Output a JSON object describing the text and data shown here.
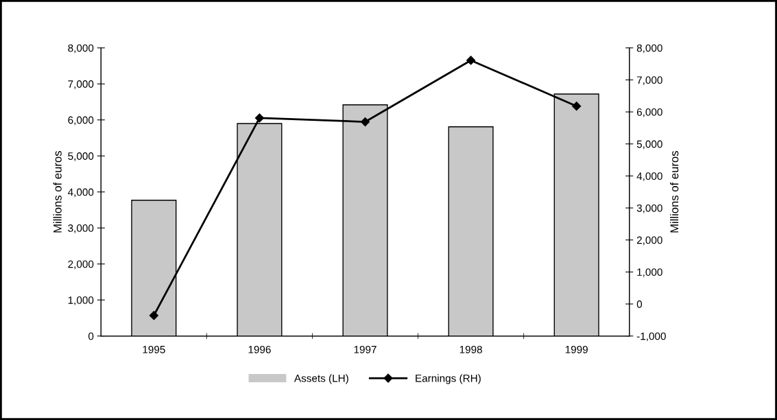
{
  "chart_data": {
    "type": "bar",
    "categories": [
      "1995",
      "1996",
      "1997",
      "1998",
      "1999"
    ],
    "ylabel": "Millions of euros",
    "y2label": "Millions of euros",
    "ylim": [
      0,
      8000
    ],
    "yticks": [
      {
        "value": 0,
        "label": "0"
      },
      {
        "value": 1000,
        "label": "1,000"
      },
      {
        "value": 2000,
        "label": "2,000"
      },
      {
        "value": 3000,
        "label": "3,000"
      },
      {
        "value": 4000,
        "label": "4,000"
      },
      {
        "value": 5000,
        "label": "5,000"
      },
      {
        "value": 6000,
        "label": "6,000"
      },
      {
        "value": 7000,
        "label": "7,000"
      },
      {
        "value": 8000,
        "label": "8,000"
      }
    ],
    "y2lim": [
      -1000,
      8000
    ],
    "y2ticks": [
      {
        "value": -1000,
        "label": "-1,000"
      },
      {
        "value": 0,
        "label": "0"
      },
      {
        "value": 1000,
        "label": "1,000"
      },
      {
        "value": 2000,
        "label": "2,000"
      },
      {
        "value": 3000,
        "label": "3,000"
      },
      {
        "value": 4000,
        "label": "4,000"
      },
      {
        "value": 5000,
        "label": "5,000"
      },
      {
        "value": 6000,
        "label": "6,000"
      },
      {
        "value": 7000,
        "label": "7,000"
      },
      {
        "value": 8000,
        "label": "8,000"
      }
    ],
    "series": [
      {
        "name": "Assets (LH)",
        "color": "#c8c8c8",
        "values": [
          3770,
          5900,
          6420,
          5810,
          6720
        ]
      },
      {
        "name": "Earnings (RH)",
        "type": "line",
        "axis": "y2",
        "color": "#000000",
        "marker": "diamond",
        "values": [
          -360,
          5810,
          5690,
          7610,
          6180
        ]
      }
    ],
    "grid": false,
    "legend": "bottom"
  }
}
